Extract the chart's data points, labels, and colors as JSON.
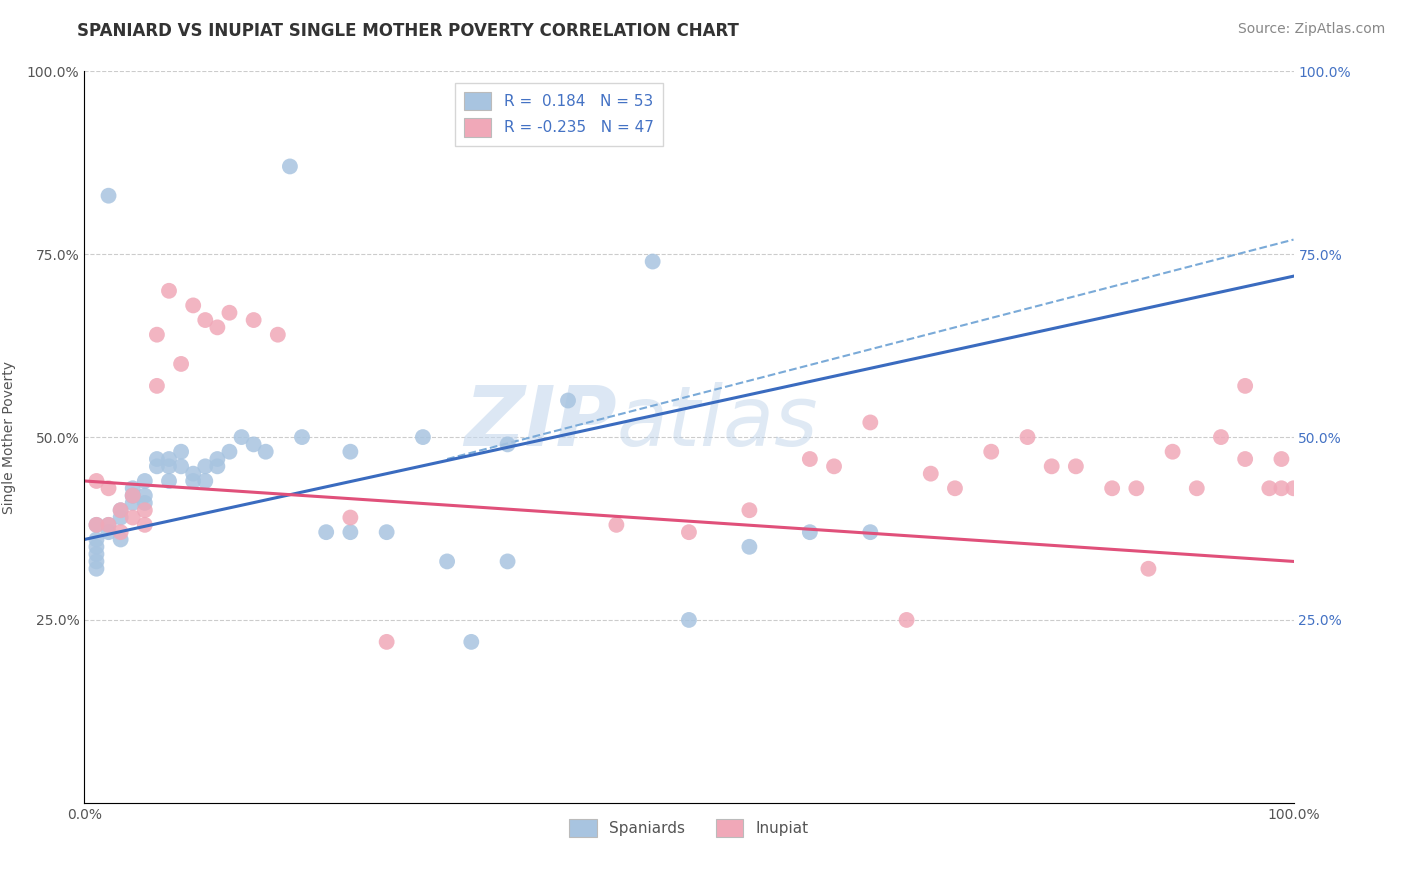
{
  "title": "SPANIARD VS INUPIAT SINGLE MOTHER POVERTY CORRELATION CHART",
  "source": "Source: ZipAtlas.com",
  "ylabel": "Single Mother Poverty",
  "xlim": [
    0.0,
    1.0
  ],
  "ylim": [
    0.0,
    1.0
  ],
  "xtick_labels": [
    "0.0%",
    "100.0%"
  ],
  "ytick_labels": [
    "25.0%",
    "50.0%",
    "75.0%",
    "100.0%"
  ],
  "ytick_positions": [
    0.25,
    0.5,
    0.75,
    1.0
  ],
  "spaniard_color": "#a8c4e0",
  "inupiat_color": "#f0a8b8",
  "spaniard_line_color": "#3a6bbf",
  "inupiat_line_color": "#e0507a",
  "dashed_line_color": "#7aaad8",
  "background_color": "#ffffff",
  "spaniard_line_x0": 0.0,
  "spaniard_line_y0": 0.36,
  "spaniard_line_x1": 1.0,
  "spaniard_line_y1": 0.72,
  "inupiat_line_x0": 0.0,
  "inupiat_line_y0": 0.44,
  "inupiat_line_x1": 1.0,
  "inupiat_line_y1": 0.33,
  "dashed_line_x0": 0.3,
  "dashed_line_y0": 0.47,
  "dashed_line_x1": 1.0,
  "dashed_line_y1": 0.77,
  "spaniards_x": [
    0.02,
    0.17,
    0.01,
    0.01,
    0.01,
    0.01,
    0.01,
    0.01,
    0.02,
    0.02,
    0.03,
    0.03,
    0.03,
    0.04,
    0.04,
    0.04,
    0.04,
    0.05,
    0.05,
    0.05,
    0.06,
    0.06,
    0.07,
    0.07,
    0.07,
    0.08,
    0.08,
    0.09,
    0.09,
    0.1,
    0.1,
    0.11,
    0.11,
    0.12,
    0.13,
    0.14,
    0.15,
    0.18,
    0.2,
    0.22,
    0.25,
    0.3,
    0.32,
    0.35,
    0.4,
    0.47,
    0.5,
    0.55,
    0.6,
    0.65,
    0.35,
    0.28,
    0.22
  ],
  "spaniards_y": [
    0.83,
    0.87,
    0.38,
    0.36,
    0.35,
    0.34,
    0.33,
    0.32,
    0.38,
    0.37,
    0.36,
    0.4,
    0.39,
    0.43,
    0.42,
    0.42,
    0.41,
    0.42,
    0.44,
    0.41,
    0.47,
    0.46,
    0.47,
    0.46,
    0.44,
    0.48,
    0.46,
    0.45,
    0.44,
    0.46,
    0.44,
    0.47,
    0.46,
    0.48,
    0.5,
    0.49,
    0.48,
    0.5,
    0.37,
    0.37,
    0.37,
    0.33,
    0.22,
    0.33,
    0.55,
    0.74,
    0.25,
    0.35,
    0.37,
    0.37,
    0.49,
    0.5,
    0.48
  ],
  "inupiat_x": [
    0.01,
    0.01,
    0.02,
    0.02,
    0.03,
    0.03,
    0.04,
    0.04,
    0.05,
    0.05,
    0.06,
    0.06,
    0.07,
    0.08,
    0.09,
    0.1,
    0.11,
    0.12,
    0.14,
    0.16,
    0.22,
    0.25,
    0.44,
    0.5,
    0.55,
    0.6,
    0.62,
    0.65,
    0.7,
    0.72,
    0.75,
    0.78,
    0.8,
    0.82,
    0.85,
    0.87,
    0.9,
    0.92,
    0.94,
    0.96,
    0.96,
    0.98,
    0.99,
    0.99,
    1.0,
    0.88,
    0.68
  ],
  "inupiat_y": [
    0.44,
    0.38,
    0.43,
    0.38,
    0.4,
    0.37,
    0.42,
    0.39,
    0.4,
    0.38,
    0.64,
    0.57,
    0.7,
    0.6,
    0.68,
    0.66,
    0.65,
    0.67,
    0.66,
    0.64,
    0.39,
    0.22,
    0.38,
    0.37,
    0.4,
    0.47,
    0.46,
    0.52,
    0.45,
    0.43,
    0.48,
    0.5,
    0.46,
    0.46,
    0.43,
    0.43,
    0.48,
    0.43,
    0.5,
    0.47,
    0.57,
    0.43,
    0.47,
    0.43,
    0.43,
    0.32,
    0.25
  ],
  "title_fontsize": 12,
  "axis_label_fontsize": 10,
  "tick_fontsize": 10,
  "legend_fontsize": 11,
  "source_fontsize": 10
}
